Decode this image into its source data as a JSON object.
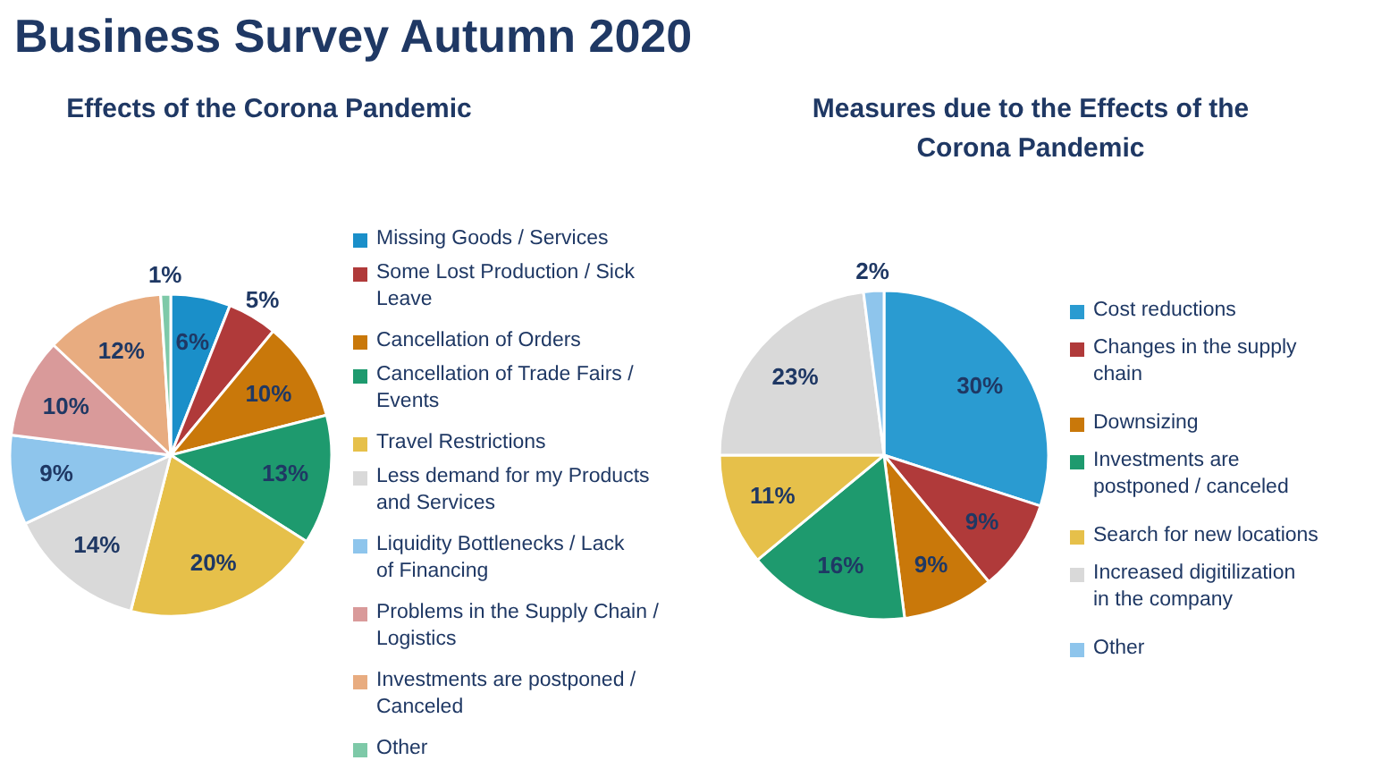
{
  "chart_data": [
    {
      "type": "pie",
      "title": "Business Survey Autumn 2020",
      "subtitle": "Effects of the Corona Pandemic",
      "categories": [
        "Missing Goods / Services",
        "Some Lost Production / Sick Leave",
        "Cancellation of Orders",
        "Cancellation of Trade Fairs / Events",
        "Travel Restrictions",
        "Less demand for my Products and Services",
        "Liquidity Bottlenecks / Lack of Financing",
        "Problems in the Supply Chain / Logistics",
        "Investments are postponed / Canceled",
        "Other"
      ],
      "values": [
        6,
        5,
        10,
        13,
        20,
        14,
        9,
        10,
        12,
        1
      ],
      "value_labels": [
        "6%",
        "5%",
        "10%",
        "13%",
        "20%",
        "14%",
        "9%",
        "10%",
        "12%",
        "1%"
      ],
      "colors": [
        "#1a8fc9",
        "#b03a3a",
        "#c9780a",
        "#1e9a6e",
        "#e6c04a",
        "#d9d9d9",
        "#8ec5ec",
        "#d99a9a",
        "#e8ac80",
        "#7ec9a8"
      ],
      "legend": "right"
    },
    {
      "type": "pie",
      "title": "Measures due to the Effects of the Corona Pandemic",
      "categories": [
        "Cost reductions",
        "Changes in the supply chain",
        "Downsizing",
        "Investments are postponed / canceled",
        "Search for new locations",
        "Increased digitilization in the company",
        "Other"
      ],
      "values": [
        30,
        9,
        9,
        16,
        11,
        23,
        2
      ],
      "value_labels": [
        "30%",
        "9%",
        "9%",
        "16%",
        "11%",
        "23%",
        "2%"
      ],
      "colors": [
        "#2a9bd1",
        "#b03a3a",
        "#c9780a",
        "#1e9a6e",
        "#e6c04a",
        "#d9d9d9",
        "#8ec5ec"
      ],
      "legend": "right"
    }
  ]
}
